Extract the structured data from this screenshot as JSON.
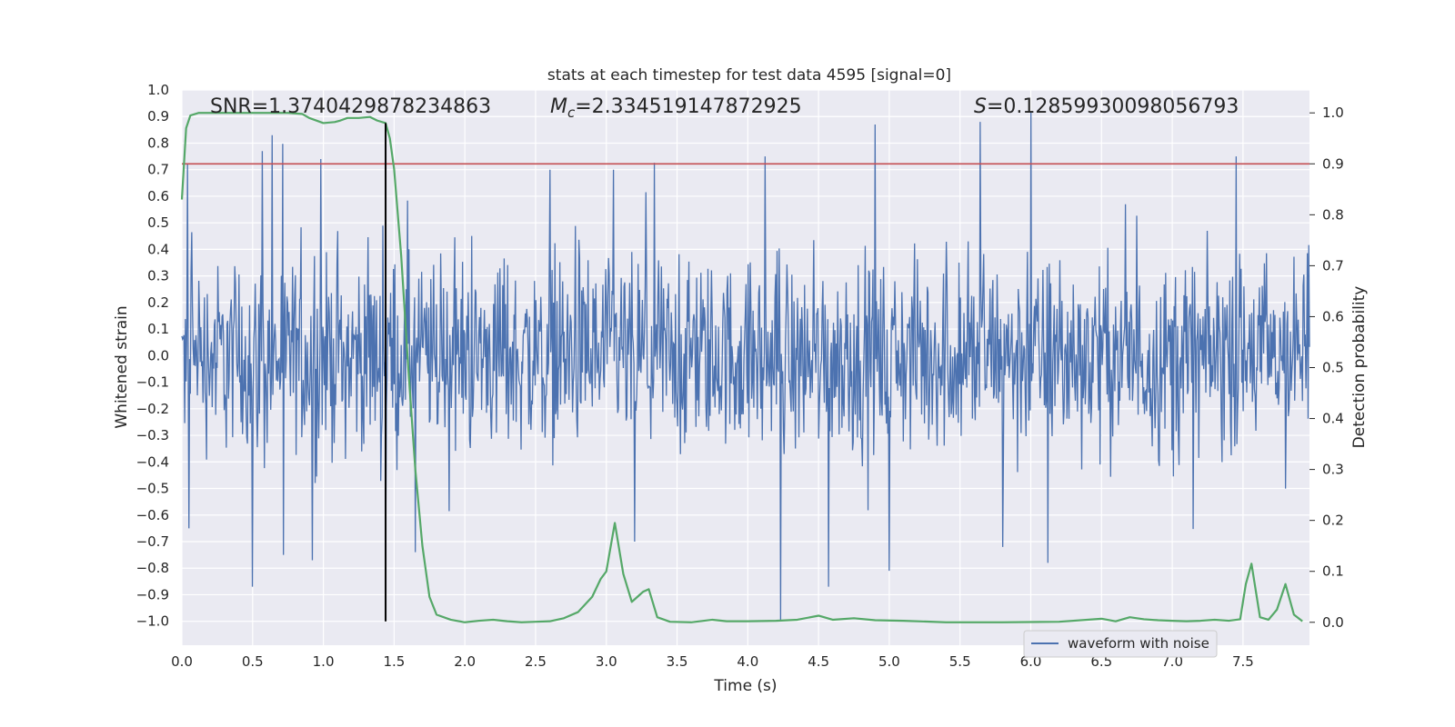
{
  "chart_data": {
    "type": "line",
    "title": "stats at each timestep for test data 4595 [signal=0]",
    "xlabel": "Time (s)",
    "ylabel_left": "Whitened strain",
    "ylabel_right": "Detection probability",
    "xlim": [
      0.0,
      7.97
    ],
    "ylim_left": [
      -1.09,
      1.0
    ],
    "ylim_right": [
      -0.045,
      1.045
    ],
    "x_ticks": [
      "0.0",
      "0.5",
      "1.0",
      "1.5",
      "2.0",
      "2.5",
      "3.0",
      "3.5",
      "4.0",
      "4.5",
      "5.0",
      "5.5",
      "6.0",
      "6.5",
      "7.0",
      "7.5"
    ],
    "y_ticks_left": [
      "1.0",
      "0.9",
      "0.8",
      "0.7",
      "0.6",
      "0.5",
      "0.4",
      "0.3",
      "0.2",
      "0.1",
      "0.0",
      "−0.1",
      "−0.2",
      "−0.3",
      "−0.4",
      "−0.5",
      "−0.6",
      "−0.7",
      "−0.8",
      "−0.9",
      "−1.0"
    ],
    "y_ticks_right": [
      "1.0",
      "0.9",
      "0.8",
      "0.7",
      "0.6",
      "0.5",
      "0.4",
      "0.3",
      "0.2",
      "0.1",
      "0.0"
    ],
    "grid": true,
    "legend_position": "bottom-right",
    "annotations": {
      "snr": "SNR=1.3740429878234863",
      "mc_symbol": "M",
      "mc_subscript": "c",
      "mc_value": "=2.334519147872925",
      "s_symbol": "S",
      "s_value": "=0.12859930098056793"
    },
    "threshold_right": 0.9,
    "vertical_marker_x": 1.44,
    "series": [
      {
        "name": "waveform with noise",
        "axis": "left",
        "color": "#4c72b0",
        "description": "dense noisy whitened strain sampled across 0–7.97 s, mostly within ±0.45 with spikes to about ±0.9",
        "peaks": [
          {
            "x": 0.04,
            "y": 0.72
          },
          {
            "x": 0.05,
            "y": -0.65
          },
          {
            "x": 0.5,
            "y": -0.87
          },
          {
            "x": 0.57,
            "y": 0.77
          },
          {
            "x": 0.64,
            "y": 0.83
          },
          {
            "x": 0.72,
            "y": -0.75
          },
          {
            "x": 0.92,
            "y": -0.77
          },
          {
            "x": 0.98,
            "y": 0.74
          },
          {
            "x": 1.44,
            "y": -0.72
          },
          {
            "x": 1.65,
            "y": -0.74
          },
          {
            "x": 2.6,
            "y": 0.7
          },
          {
            "x": 3.05,
            "y": 0.7
          },
          {
            "x": 3.2,
            "y": -0.7
          },
          {
            "x": 4.12,
            "y": 0.75
          },
          {
            "x": 4.23,
            "y": -1.0
          },
          {
            "x": 4.57,
            "y": -0.87
          },
          {
            "x": 4.9,
            "y": 0.87
          },
          {
            "x": 5.0,
            "y": -0.81
          },
          {
            "x": 5.64,
            "y": 0.88
          },
          {
            "x": 5.8,
            "y": -0.72
          },
          {
            "x": 6.0,
            "y": 0.92
          },
          {
            "x": 6.12,
            "y": -0.78
          },
          {
            "x": 7.45,
            "y": 0.75
          }
        ]
      },
      {
        "name": "Detection probability",
        "axis": "right",
        "color": "#55a868",
        "x": [
          0.0,
          0.03,
          0.06,
          0.12,
          0.2,
          0.3,
          0.45,
          0.6,
          0.75,
          0.85,
          0.9,
          1.0,
          1.08,
          1.12,
          1.17,
          1.25,
          1.33,
          1.38,
          1.44,
          1.47,
          1.5,
          1.55,
          1.6,
          1.65,
          1.7,
          1.75,
          1.8,
          1.9,
          2.0,
          2.1,
          2.2,
          2.3,
          2.4,
          2.5,
          2.6,
          2.7,
          2.8,
          2.9,
          2.96,
          3.0,
          3.06,
          3.12,
          3.18,
          3.22,
          3.26,
          3.3,
          3.36,
          3.45,
          3.6,
          3.75,
          3.85,
          4.0,
          4.2,
          4.35,
          4.5,
          4.6,
          4.75,
          4.9,
          5.1,
          5.4,
          5.8,
          6.2,
          6.5,
          6.6,
          6.7,
          6.8,
          6.9,
          7.0,
          7.1,
          7.2,
          7.3,
          7.4,
          7.48,
          7.52,
          7.56,
          7.62,
          7.68,
          7.74,
          7.8,
          7.86,
          7.92
        ],
        "values": [
          0.83,
          0.97,
          0.995,
          1.0,
          1.0,
          1.0,
          1.0,
          1.0,
          1.0,
          0.998,
          0.99,
          0.98,
          0.982,
          0.985,
          0.99,
          0.99,
          0.992,
          0.985,
          0.98,
          0.95,
          0.89,
          0.72,
          0.5,
          0.3,
          0.15,
          0.05,
          0.015,
          0.005,
          0.0,
          0.003,
          0.005,
          0.002,
          0.0,
          0.001,
          0.002,
          0.008,
          0.02,
          0.05,
          0.085,
          0.1,
          0.195,
          0.095,
          0.04,
          0.05,
          0.06,
          0.065,
          0.01,
          0.001,
          0.0,
          0.005,
          0.002,
          0.002,
          0.003,
          0.005,
          0.013,
          0.005,
          0.008,
          0.004,
          0.003,
          0.0,
          0.0,
          0.001,
          0.007,
          0.002,
          0.01,
          0.006,
          0.004,
          0.003,
          0.002,
          0.003,
          0.005,
          0.003,
          0.006,
          0.075,
          0.115,
          0.01,
          0.005,
          0.025,
          0.075,
          0.015,
          0.002
        ]
      }
    ]
  }
}
